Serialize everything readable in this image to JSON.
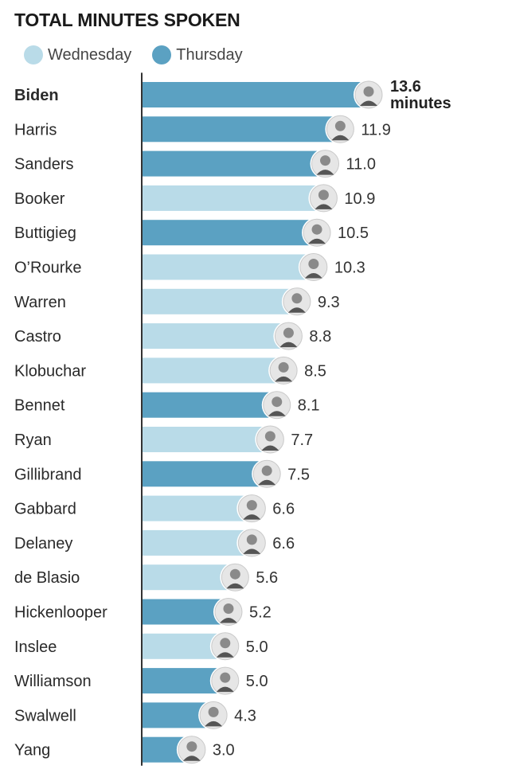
{
  "chart_data": {
    "type": "bar",
    "orientation": "horizontal",
    "title": "TOTAL MINUTES SPOKEN",
    "legend": [
      {
        "name": "Wednesday",
        "color": "#b9dbe8"
      },
      {
        "name": "Thursday",
        "color": "#5ba1c2"
      }
    ],
    "categories": [
      "Biden",
      "Harris",
      "Sanders",
      "Booker",
      "Buttigieg",
      "O’Rourke",
      "Warren",
      "Castro",
      "Klobuchar",
      "Bennet",
      "Ryan",
      "Gillibrand",
      "Gabbard",
      "Delaney",
      "de Blasio",
      "Hickenlooper",
      "Inslee",
      "Williamson",
      "Swalwell",
      "Yang"
    ],
    "values": [
      13.6,
      11.9,
      11.0,
      10.9,
      10.5,
      10.3,
      9.3,
      8.8,
      8.5,
      8.1,
      7.7,
      7.5,
      6.6,
      6.6,
      5.6,
      5.2,
      5.0,
      5.0,
      4.3,
      3.0
    ],
    "value_labels": [
      "13.6",
      "11.9",
      "11.0",
      "10.9",
      "10.5",
      "10.3",
      "9.3",
      "8.8",
      "8.5",
      "8.1",
      "7.7",
      "7.5",
      "6.6",
      "6.6",
      "5.6",
      "5.2",
      "5.0",
      "5.0",
      "4.3",
      "3.0"
    ],
    "days": [
      "Thursday",
      "Thursday",
      "Thursday",
      "Wednesday",
      "Thursday",
      "Wednesday",
      "Wednesday",
      "Wednesday",
      "Wednesday",
      "Thursday",
      "Wednesday",
      "Thursday",
      "Wednesday",
      "Wednesday",
      "Wednesday",
      "Thursday",
      "Wednesday",
      "Thursday",
      "Thursday",
      "Thursday"
    ],
    "first_label_unit": "minutes",
    "highlight": "Biden",
    "xlim": [
      0,
      13.6
    ]
  },
  "colors": {
    "wednesday": "#b9dbe8",
    "thursday": "#5ba1c2",
    "axis": "#333333",
    "avatar_ring": "#e6e6e6"
  },
  "icons": {
    "avatar": "candidate-portrait-icon"
  }
}
